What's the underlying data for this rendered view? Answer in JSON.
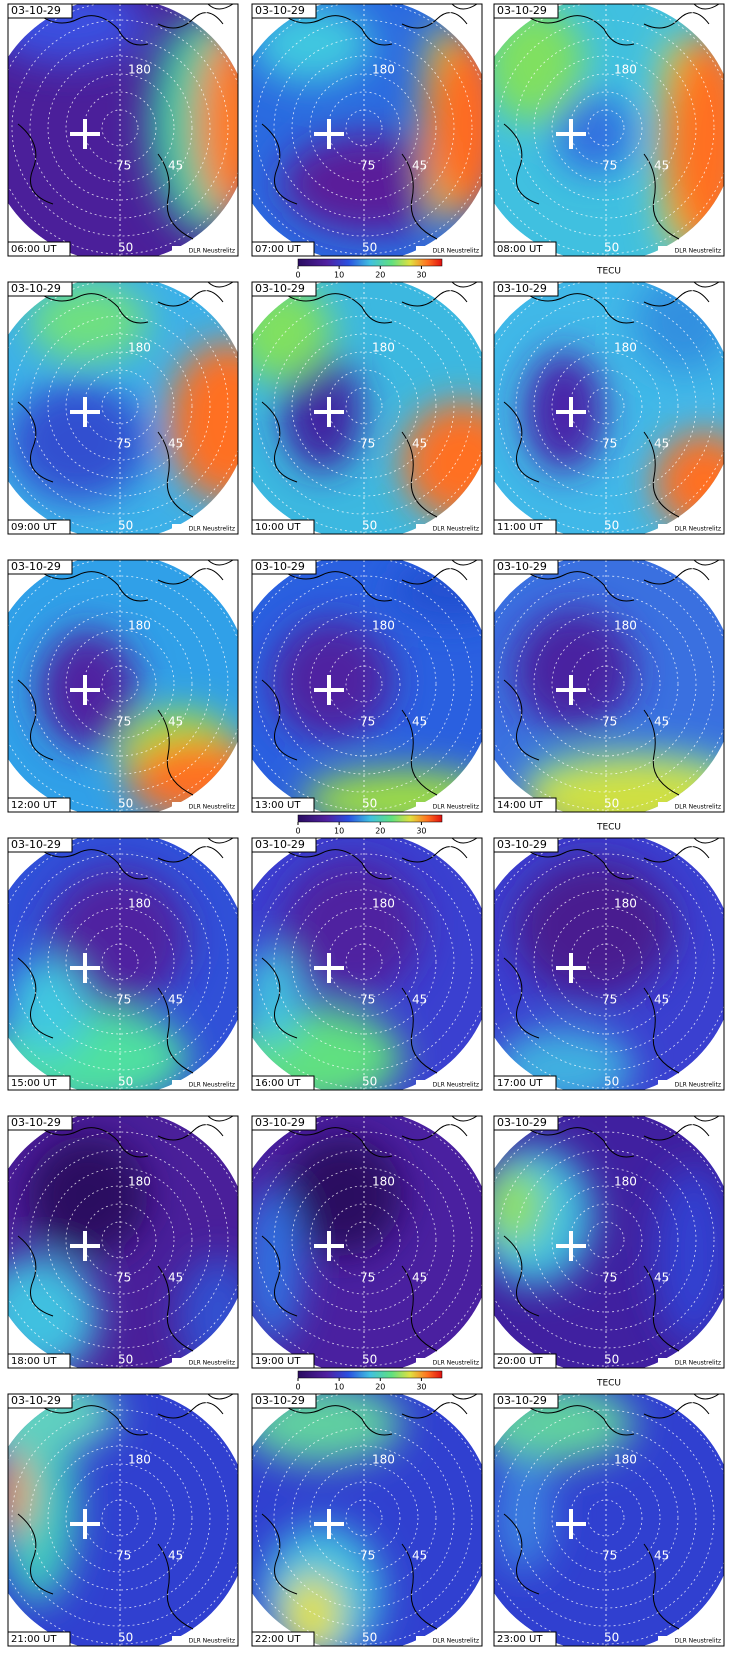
{
  "date": "03-10-29",
  "credit": "DLR Neustrelitz",
  "grid_labels": [
    "180",
    "75",
    "45",
    "50"
  ],
  "panels": [
    {
      "time": "06:00 UT"
    },
    {
      "time": "07:00 UT"
    },
    {
      "time": "08:00 UT"
    },
    {
      "time": "09:00 UT"
    },
    {
      "time": "10:00 UT"
    },
    {
      "time": "11:00 UT"
    },
    {
      "time": "12:00 UT"
    },
    {
      "time": "13:00 UT"
    },
    {
      "time": "14:00 UT"
    },
    {
      "time": "15:00 UT"
    },
    {
      "time": "16:00 UT"
    },
    {
      "time": "17:00 UT"
    },
    {
      "time": "18:00 UT"
    },
    {
      "time": "19:00 UT"
    },
    {
      "time": "20:00 UT"
    },
    {
      "time": "21:00 UT"
    },
    {
      "time": "22:00 UT"
    },
    {
      "time": "23:00 UT"
    }
  ],
  "colorbar": {
    "ticks": [
      0,
      10,
      20,
      30
    ],
    "lim": [
      0,
      35
    ],
    "unit": "TECU"
  }
}
